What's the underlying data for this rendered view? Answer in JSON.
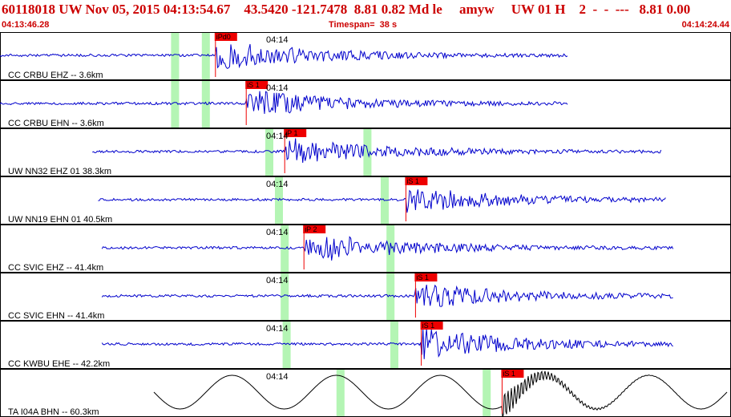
{
  "header": {
    "title": "60118018 UW Nov 05, 2015 04:13:54.67    43.5420 -121.7478  8.81 0.82 Md le     amyw     UW 01 H    2  -  -  ---   8.81 0.00",
    "start_time": "04:13:46.28",
    "timespan": "Timespan=  38 s",
    "end_time": "04:14:24.44"
  },
  "colors": {
    "header_text": "#cc0000",
    "trace": "#0000cc",
    "broadband_trace": "#000000",
    "pick_flag": "#ee0000",
    "window": "#b4f5b4",
    "panel_border": "#000000"
  },
  "chart_data": {
    "type": "seismogram",
    "time_axis_label": "04:14",
    "start": "04:13:46.28",
    "end": "04:14:24.44",
    "timespan_s": 38,
    "channels": [
      {
        "label": "CC CRBU EHZ -- 3.6km",
        "pick": "iPd0",
        "pick_time_s": 11.2,
        "windows_s": [
          9.1,
          10.7
        ],
        "color": "#0000cc",
        "span_s": [
          0.0,
          29.5
        ],
        "amp": 0.32,
        "style": "hf"
      },
      {
        "label": "CC CRBU EHN -- 3.6km",
        "pick": "iS 1",
        "pick_time_s": 12.8,
        "windows_s": [
          9.1,
          10.7
        ],
        "color": "#0000cc",
        "span_s": [
          0.0,
          29.5
        ],
        "amp": 0.28,
        "style": "hf"
      },
      {
        "label": "UW NN32 EHZ 01 38.3km",
        "pick": "iP 1",
        "pick_time_s": 14.8,
        "windows_s": [
          14.0,
          19.1
        ],
        "color": "#0000cc",
        "span_s": [
          4.8,
          34.4
        ],
        "amp": 0.3,
        "style": "hf"
      },
      {
        "label": "UW NN19 EHN 01 40.5km",
        "pick": "iS 1",
        "pick_time_s": 21.1,
        "windows_s": [
          14.5,
          20.0
        ],
        "color": "#0000cc",
        "span_s": [
          5.1,
          34.6
        ],
        "amp": 0.28,
        "style": "hf"
      },
      {
        "label": "CC SVIC EHZ -- 41.4km",
        "pick": "iP 2",
        "pick_time_s": 15.8,
        "windows_s": [
          14.8,
          20.3
        ],
        "color": "#0000cc",
        "span_s": [
          5.3,
          35.0
        ],
        "amp": 0.34,
        "style": "hf"
      },
      {
        "label": "CC SVIC EHN -- 41.4km",
        "pick": "iS 1",
        "pick_time_s": 21.6,
        "windows_s": [
          14.8,
          20.3
        ],
        "color": "#0000cc",
        "span_s": [
          5.3,
          35.0
        ],
        "amp": 0.28,
        "style": "hf"
      },
      {
        "label": "CC KWBU EHE -- 42.2km",
        "pick": "iS 1",
        "pick_time_s": 21.9,
        "windows_s": [
          14.9,
          20.5
        ],
        "color": "#0000cc",
        "span_s": [
          5.3,
          35.0
        ],
        "amp": 0.32,
        "style": "hf"
      },
      {
        "label": "TA I04A BHN -- 60.3km",
        "pick": "iS 1",
        "pick_time_s": 26.1,
        "windows_s": [
          17.7,
          25.3
        ],
        "color": "#000000",
        "span_s": [
          8.0,
          37.8
        ],
        "amp": 0.35,
        "style": "lp"
      }
    ]
  }
}
